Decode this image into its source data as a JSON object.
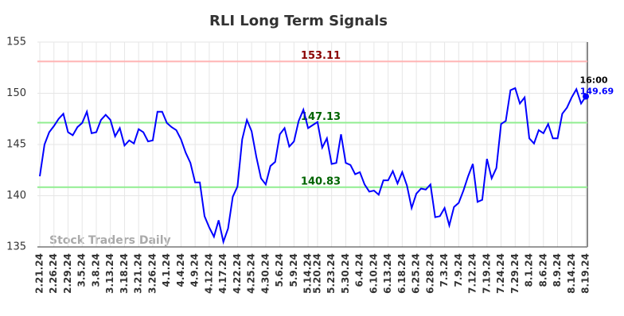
{
  "chart_data": {
    "type": "line",
    "title": "RLI Long Term Signals",
    "watermark": "Stock Traders Daily",
    "color": "#0000ff",
    "ylim": [
      135,
      155
    ],
    "yticks": [
      135,
      140,
      145,
      150,
      155
    ],
    "grid": true,
    "hlines": [
      {
        "value": 153.11,
        "color": "#ffb3b3",
        "label_color": "#8b0000"
      },
      {
        "value": 147.13,
        "color": "#90ee90",
        "label_color": "#006400"
      },
      {
        "value": 140.83,
        "color": "#90ee90",
        "label_color": "#006400"
      }
    ],
    "last_label": "16:00",
    "categories": [
      "2.21.24",
      null,
      null,
      "2.26.24",
      null,
      null,
      "2.29.24",
      null,
      null,
      "3.5.24",
      null,
      null,
      "3.8.24",
      null,
      null,
      "3.13.24",
      null,
      null,
      "3.18.24",
      null,
      null,
      "3.21.24",
      null,
      null,
      "3.26.24",
      null,
      null,
      "4.1.24",
      null,
      null,
      "4.4.24",
      null,
      null,
      "4.9.24",
      null,
      null,
      "4.12.24",
      null,
      null,
      "4.17.24",
      null,
      null,
      "4.22.24",
      null,
      null,
      "4.25.24",
      null,
      null,
      "4.30.24",
      null,
      null,
      "5.6.24",
      null,
      null,
      "5.9.24",
      null,
      null,
      "5.14.24",
      null,
      "5.20.24",
      null,
      null,
      "5.23.24",
      null,
      null,
      "5.30.24",
      null,
      null,
      "6.4.24",
      null,
      null,
      "6.10.24",
      null,
      null,
      "6.13.24",
      null,
      null,
      "6.18.24",
      null,
      null,
      "6.25.24",
      null,
      null,
      "6.28.24",
      null,
      null,
      "7.3.24",
      null,
      null,
      "7.9.24",
      null,
      null,
      "7.12.24",
      null,
      null,
      "7.19.24",
      null,
      null,
      "7.24.24",
      null,
      null,
      "7.29.24",
      null,
      null,
      "8.1.24",
      null,
      null,
      "8.6.24",
      null,
      null,
      "8.9.24",
      null,
      null,
      "8.14.24",
      null,
      null,
      "8.19.24"
    ],
    "values": [
      141.9,
      145,
      146.2,
      146.8,
      147.5,
      148,
      146.2,
      145.9,
      146.7,
      147.1,
      148.2,
      146.1,
      146.2,
      147.4,
      147.9,
      147.4,
      145.8,
      146.6,
      144.9,
      145.4,
      145.1,
      146.5,
      146.2,
      145.3,
      145.4,
      148.2,
      148.2,
      147.1,
      146.7,
      146.4,
      145.5,
      144.2,
      143.2,
      141.3,
      141.3,
      138,
      136.9,
      136,
      137.6,
      135.5,
      136.8,
      139.9,
      140.9,
      145.5,
      147.4,
      146.3,
      143.8,
      141.7,
      141.1,
      142.9,
      143.3,
      146,
      146.6,
      144.8,
      145.3,
      147.3,
      148.4,
      146.6,
      146.9,
      147.2,
      144.7,
      145.6,
      143.1,
      143.2,
      146,
      143.2,
      143,
      142.1,
      142.3,
      141.1,
      140.4,
      140.5,
      140.1,
      141.5,
      141.5,
      142.4,
      141.2,
      142.3,
      141,
      138.8,
      140.2,
      140.7,
      140.6,
      141.1,
      137.9,
      138,
      138.8,
      137.1,
      138.9,
      139.3,
      140.5,
      141.9,
      143.1,
      139.4,
      139.6,
      143.6,
      141.7,
      142.7,
      147,
      147.3,
      150.3,
      150.5,
      149,
      149.6,
      145.6,
      145.1,
      146.4,
      146.1,
      147,
      145.6,
      145.6,
      148,
      148.6,
      149.6,
      150.4,
      149,
      149.69
    ]
  }
}
